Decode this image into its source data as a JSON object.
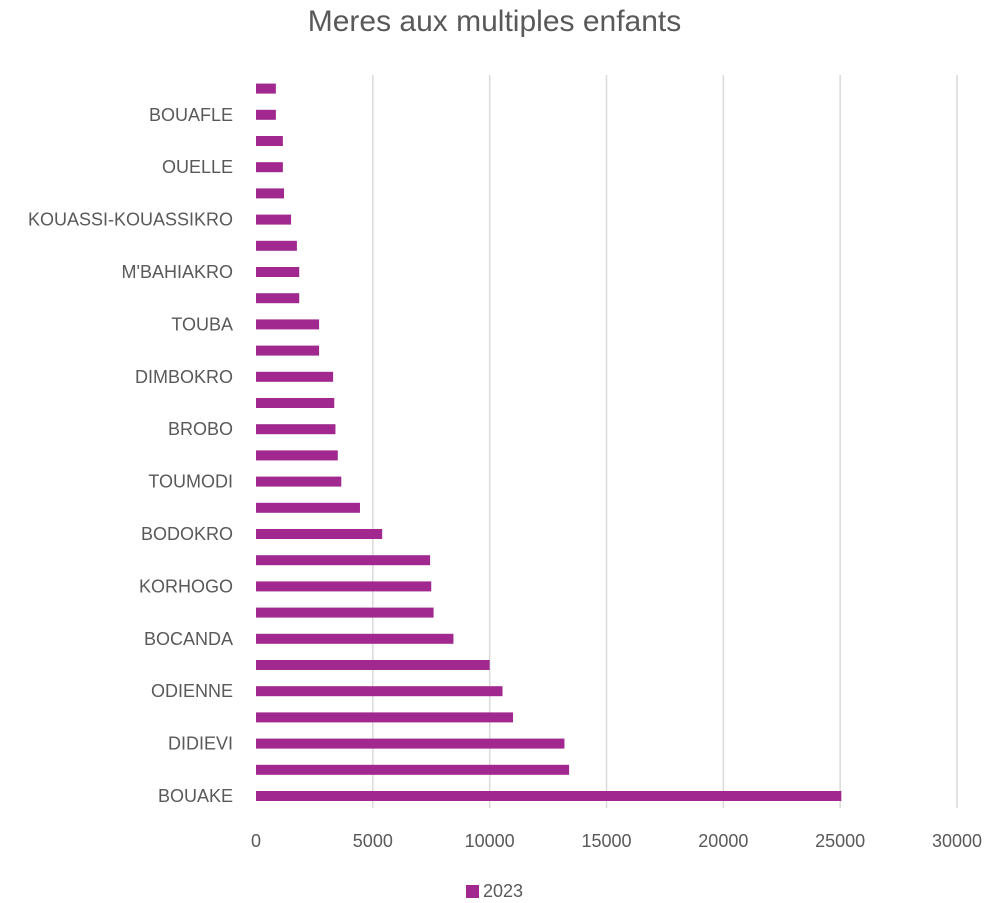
{
  "chart_data": {
    "type": "bar",
    "orientation": "horizontal",
    "title": "Meres aux multiples enfants",
    "xlabel": "",
    "ylabel": "",
    "xlim": [
      0,
      30000
    ],
    "x_ticks": [
      0,
      5000,
      10000,
      15000,
      20000,
      25000,
      30000
    ],
    "grid": true,
    "legend_position": "bottom",
    "color": "#a0288f",
    "categories": [
      "BOUAKE",
      "",
      "DIDIEVI",
      "",
      "ODIENNE",
      "",
      "BOCANDA",
      "",
      "KORHOGO",
      "",
      "BODOKRO",
      "",
      "TOUMODI",
      "",
      "BROBO",
      "",
      "DIMBOKRO",
      "",
      "TOUBA",
      "",
      "M'BAHIAKRO",
      "",
      "KOUASSI-KOUASSIKRO",
      "",
      "OUELLE",
      "",
      "BOUAFLE",
      ""
    ],
    "series": [
      {
        "name": "2023",
        "values": [
          25050,
          13400,
          13200,
          11000,
          10550,
          10000,
          8450,
          7600,
          7500,
          7450,
          5400,
          4450,
          3650,
          3500,
          3400,
          3350,
          3300,
          2700,
          2700,
          1850,
          1850,
          1750,
          1500,
          1200,
          1150,
          1150,
          850,
          850
        ]
      }
    ]
  }
}
